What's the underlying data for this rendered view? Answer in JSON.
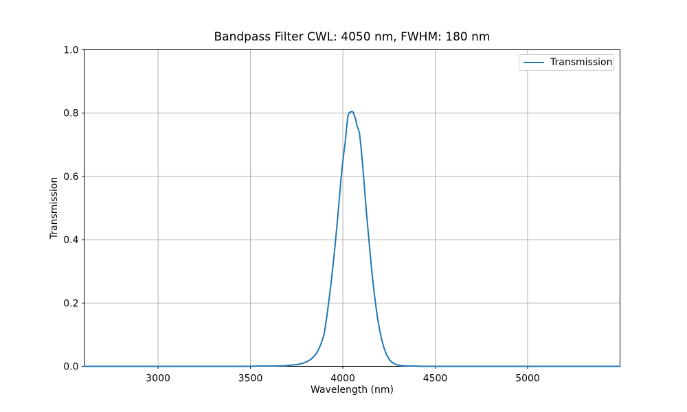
{
  "figure": {
    "background": "#ffffff"
  },
  "chart_data": {
    "type": "line",
    "title": "Bandpass Filter CWL: 4050 nm, FWHM: 180 nm",
    "xlabel": "Wavelength (nm)",
    "ylabel": "Transmission",
    "xlim": [
      2600,
      5500
    ],
    "ylim": [
      0.0,
      1.0
    ],
    "xticks": {
      "values": [
        3000,
        3500,
        4000,
        4500,
        5000
      ],
      "labels": [
        "3000",
        "3500",
        "4000",
        "4500",
        "5000"
      ]
    },
    "yticks": {
      "values": [
        0.0,
        0.2,
        0.4,
        0.6,
        0.8,
        1.0
      ],
      "labels": [
        "0.0",
        "0.2",
        "0.4",
        "0.6",
        "0.8",
        "1.0"
      ]
    },
    "grid": true,
    "legend": {
      "position": "upper right",
      "entries": [
        {
          "label": "Transmission",
          "color": "#1f77b4"
        }
      ]
    },
    "colors": {
      "line": "#1f77b4",
      "grid": "#b0b0b0",
      "spine": "#000000",
      "text": "#000000",
      "legend_border": "#cccccc"
    },
    "key_values": {
      "cwl_nm": 4050,
      "fwhm_nm": 180,
      "peak_transmission": 0.805
    },
    "series": [
      {
        "name": "Transmission",
        "color": "#1f77b4",
        "points": [
          [
            2600,
            0
          ],
          [
            2750,
            0
          ],
          [
            2900,
            0
          ],
          [
            3050,
            0
          ],
          [
            3200,
            0
          ],
          [
            3350,
            0
          ],
          [
            3480,
            0
          ],
          [
            3560,
            0.001
          ],
          [
            3630,
            0.001
          ],
          [
            3690,
            0.002
          ],
          [
            3725,
            0.004
          ],
          [
            3758,
            0.006
          ],
          [
            3786,
            0.01
          ],
          [
            3806,
            0.015
          ],
          [
            3824,
            0.021
          ],
          [
            3842,
            0.03
          ],
          [
            3857,
            0.041
          ],
          [
            3871,
            0.056
          ],
          [
            3885,
            0.076
          ],
          [
            3899,
            0.102
          ],
          [
            3912,
            0.152
          ],
          [
            3924,
            0.205
          ],
          [
            3936,
            0.262
          ],
          [
            3948,
            0.325
          ],
          [
            3958,
            0.382
          ],
          [
            3966,
            0.432
          ],
          [
            3974,
            0.482
          ],
          [
            3982,
            0.538
          ],
          [
            3990,
            0.592
          ],
          [
            3998,
            0.638
          ],
          [
            4006,
            0.678
          ],
          [
            4013,
            0.708
          ],
          [
            4020,
            0.752
          ],
          [
            4027,
            0.79
          ],
          [
            4034,
            0.801
          ],
          [
            4042,
            0.804
          ],
          [
            4050,
            0.805
          ],
          [
            4057,
            0.802
          ],
          [
            4064,
            0.79
          ],
          [
            4070,
            0.778
          ],
          [
            4076,
            0.761
          ],
          [
            4083,
            0.75
          ],
          [
            4090,
            0.737
          ],
          [
            4097,
            0.7
          ],
          [
            4107,
            0.638
          ],
          [
            4117,
            0.565
          ],
          [
            4127,
            0.49
          ],
          [
            4137,
            0.425
          ],
          [
            4147,
            0.362
          ],
          [
            4157,
            0.3
          ],
          [
            4167,
            0.245
          ],
          [
            4177,
            0.198
          ],
          [
            4187,
            0.156
          ],
          [
            4197,
            0.121
          ],
          [
            4210,
            0.085
          ],
          [
            4224,
            0.056
          ],
          [
            4238,
            0.035
          ],
          [
            4252,
            0.021
          ],
          [
            4266,
            0.013
          ],
          [
            4282,
            0.007
          ],
          [
            4298,
            0.004
          ],
          [
            4318,
            0.002
          ],
          [
            4345,
            0.001
          ],
          [
            4385,
            0.001
          ],
          [
            4430,
            0
          ],
          [
            4520,
            0
          ],
          [
            4650,
            0
          ],
          [
            4800,
            0
          ],
          [
            4950,
            0
          ],
          [
            5100,
            0
          ],
          [
            5250,
            0
          ],
          [
            5400,
            0
          ],
          [
            5500,
            0
          ]
        ]
      }
    ]
  }
}
